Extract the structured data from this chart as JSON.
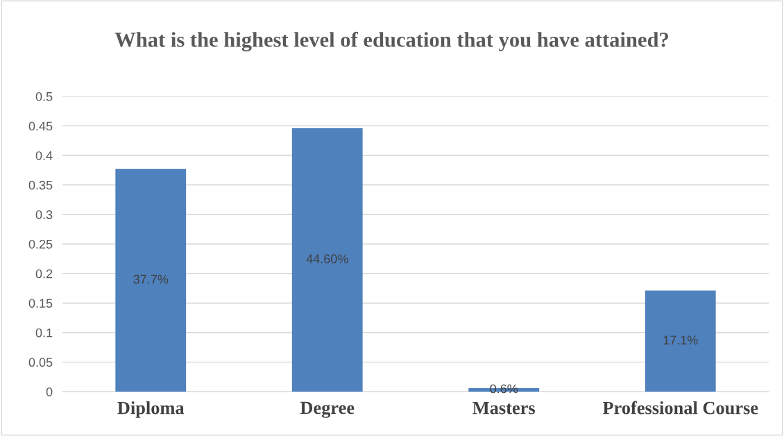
{
  "chart_data": {
    "type": "bar",
    "title": "What is the highest level of education that you have attained?",
    "categories": [
      "Diploma",
      "Degree",
      "Masters",
      "Professional Course"
    ],
    "values": [
      0.377,
      0.446,
      0.006,
      0.171
    ],
    "value_labels": [
      "37.7%",
      "44.60%",
      "0.6%",
      "17.1%"
    ],
    "color": "#4f81bd",
    "ylim": [
      0,
      0.5
    ],
    "yticks": [
      0,
      0.05,
      0.1,
      0.15,
      0.2,
      0.25,
      0.3,
      0.35,
      0.4,
      0.45,
      0.5
    ],
    "grid": "y",
    "legend": false
  }
}
